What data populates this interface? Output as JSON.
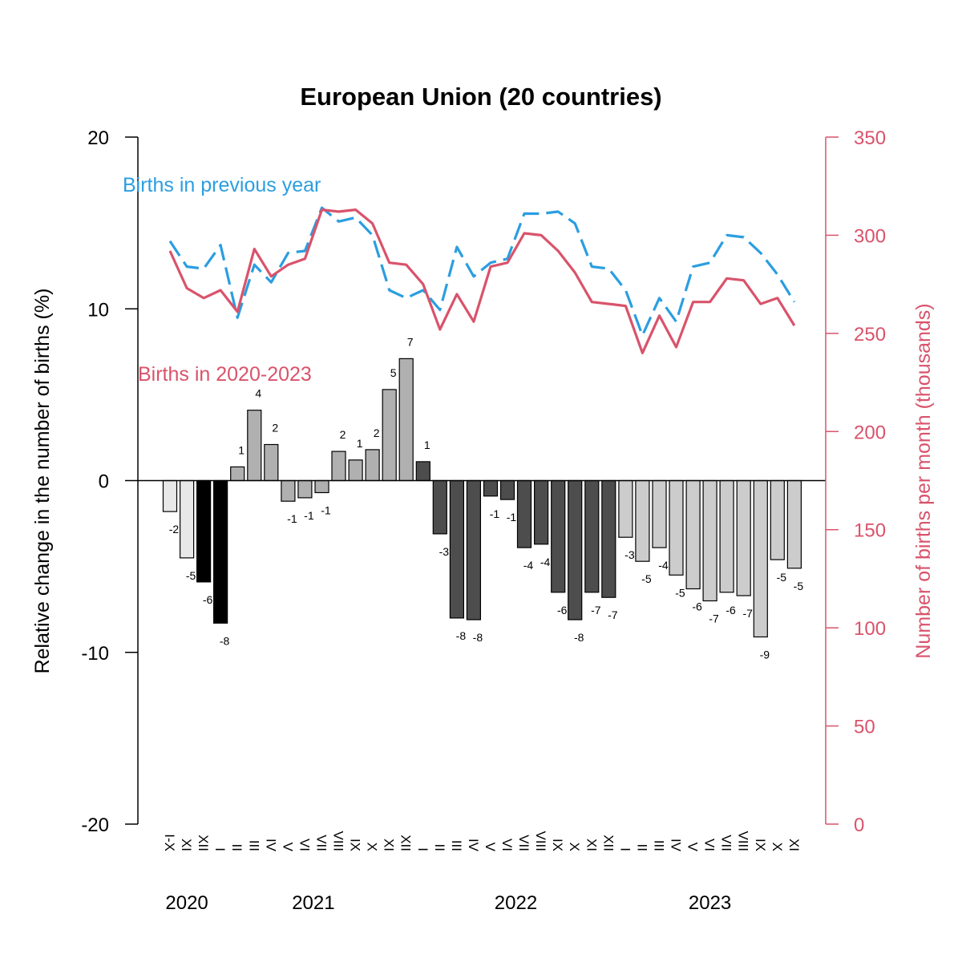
{
  "chart_data": {
    "type": "bar+line",
    "title": "European Union (20 countries)",
    "ylabel_left": "Relative change in the number of births (%)",
    "ylabel_right": "Number of births per month (thousands)",
    "ylim_left": [
      -20,
      20
    ],
    "ylim_right": [
      0,
      350
    ],
    "yticks_left": [
      "-20",
      "-10",
      "0",
      "10",
      "20"
    ],
    "yticks_right": [
      "0",
      "50",
      "100",
      "150",
      "200",
      "250",
      "300",
      "350"
    ],
    "colors": {
      "previous_year": "#2b9ee0",
      "current": "#d9536b",
      "bar_black": "#000000",
      "bar_dark": "#4d4d4d",
      "bar_mid": "#b0b0b0",
      "bar_light": "#cccccc",
      "bar_lightest": "#e8e8e8"
    },
    "legend": {
      "previous_year": "Births in previous year",
      "current": "Births in 2020-2023"
    },
    "categories": [
      "I-X",
      "XI",
      "XII",
      "I",
      "II",
      "III",
      "IV",
      "V",
      "VI",
      "VII",
      "VIII",
      "IX",
      "X",
      "XI",
      "XII",
      "I",
      "II",
      "III",
      "IV",
      "V",
      "VI",
      "VII",
      "VIII",
      "IX",
      "X",
      "XI",
      "XII",
      "I",
      "II",
      "III",
      "IV",
      "V",
      "VI",
      "VII",
      "VIII",
      "IX",
      "X",
      "XI"
    ],
    "years": [
      {
        "label": "2020",
        "first_index": 0,
        "last_index": 2
      },
      {
        "label": "2021",
        "first_index": 3,
        "last_index": 14
      },
      {
        "label": "2022",
        "first_index": 15,
        "last_index": 26
      },
      {
        "label": "2023",
        "first_index": 27,
        "last_index": 37
      }
    ],
    "bars": {
      "name": "Relative change (%)",
      "values": [
        -1.8,
        -4.5,
        -5.9,
        -8.3,
        0.8,
        4.1,
        2.1,
        -1.2,
        -1.0,
        -0.7,
        1.7,
        1.2,
        1.8,
        5.3,
        7.1,
        1.1,
        -3.1,
        -8.0,
        -8.1,
        -0.9,
        -1.1,
        -3.9,
        -3.7,
        -6.5,
        -8.1,
        -6.5,
        -6.8,
        -3.3,
        -4.7,
        -3.9,
        -5.5,
        -6.3,
        -7.0,
        -6.5,
        -6.7,
        -9.1,
        -4.6,
        -5.1
      ],
      "labels": [
        "-2",
        "-5",
        "-6",
        "-8",
        "1",
        "4",
        "2",
        "-1",
        "-1",
        "-1",
        "2",
        "1",
        "2",
        "5",
        "7",
        "1",
        "-3",
        "-8",
        "-8",
        "-1",
        "-1",
        "-4",
        "-4",
        "-6",
        "-8",
        "-7",
        "-7",
        "-3",
        "-5",
        "-4",
        "-5",
        "-6",
        "-7",
        "-6",
        "-7",
        "-9",
        "-5",
        "-5"
      ],
      "shade": [
        "lightest",
        "lightest",
        "black",
        "black",
        "mid",
        "mid",
        "mid",
        "mid",
        "mid",
        "mid",
        "mid",
        "mid",
        "mid",
        "mid",
        "mid",
        "dark",
        "dark",
        "dark",
        "dark",
        "dark",
        "dark",
        "dark",
        "dark",
        "dark",
        "dark",
        "dark",
        "dark",
        "light",
        "light",
        "light",
        "light",
        "light",
        "light",
        "light",
        "light",
        "light",
        "light",
        "light"
      ]
    },
    "series": [
      {
        "name": "Births in previous year",
        "style": "dashed",
        "values": [
          297,
          284,
          283,
          295,
          258,
          285,
          276,
          291,
          292,
          314,
          307,
          309,
          300,
          272,
          268,
          272,
          262,
          294,
          279,
          286,
          288,
          311,
          311,
          312,
          306,
          284,
          283,
          272,
          249,
          268,
          256,
          284,
          286,
          300,
          299,
          291,
          280,
          266
        ]
      },
      {
        "name": "Births in 2020-2023",
        "style": "solid",
        "values": [
          292,
          273,
          268,
          272,
          261,
          293,
          279,
          285,
          288,
          313,
          312,
          313,
          306,
          286,
          285,
          275,
          252,
          270,
          256,
          284,
          286,
          301,
          300,
          292,
          281,
          266,
          265,
          264,
          240,
          259,
          243,
          266,
          266,
          278,
          277,
          265,
          268,
          254
        ]
      }
    ]
  }
}
